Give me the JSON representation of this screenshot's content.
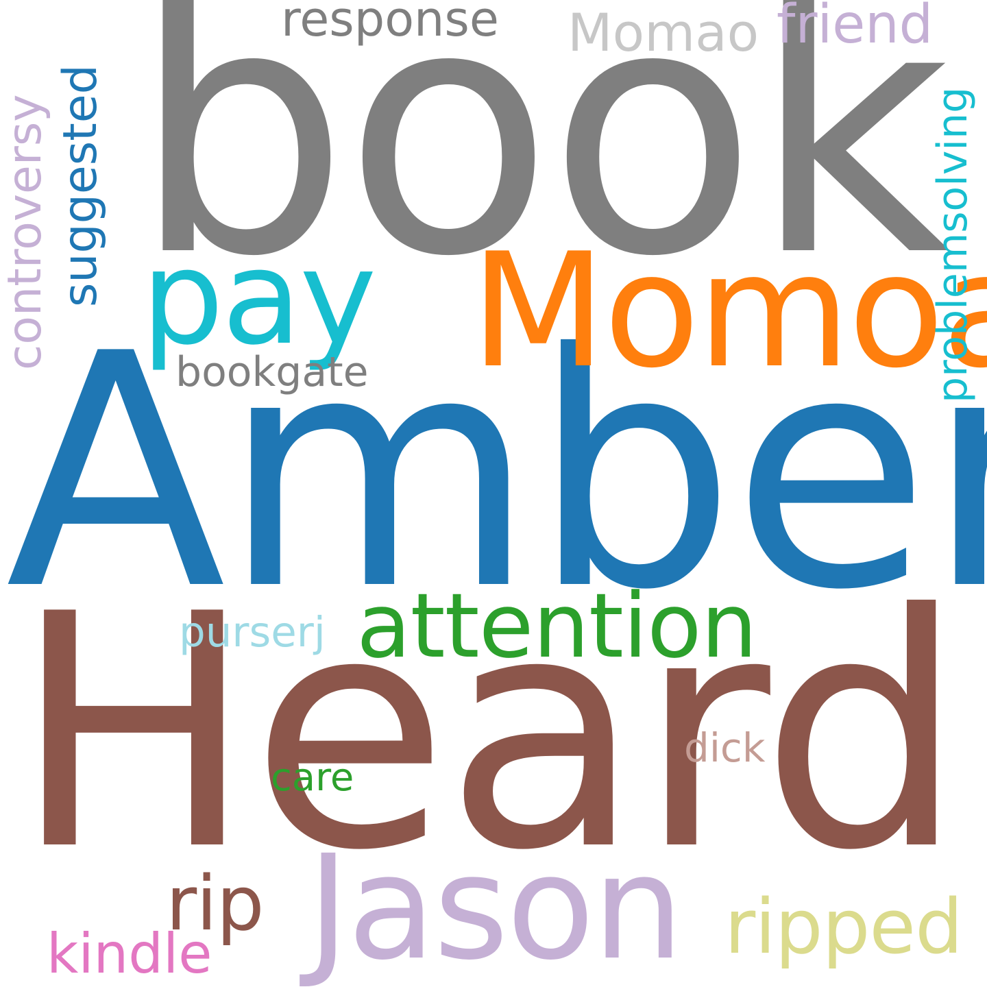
{
  "words": [
    {
      "id": "book",
      "text": "book",
      "color": "#7f7f7f"
    },
    {
      "id": "amber",
      "text": "Amber",
      "color": "#1f77b4"
    },
    {
      "id": "heard",
      "text": "Heard",
      "color": "#8c564b"
    },
    {
      "id": "momoa",
      "text": "Momoa",
      "color": "#ff7f0e"
    },
    {
      "id": "pay",
      "text": "pay",
      "color": "#17becf"
    },
    {
      "id": "jason",
      "text": "Jason",
      "color": "#c5b0d5"
    },
    {
      "id": "attention",
      "text": "attention",
      "color": "#2ca02c"
    },
    {
      "id": "ripped",
      "text": "ripped",
      "color": "#dbdb8d"
    },
    {
      "id": "rip",
      "text": "rip",
      "color": "#8c564b"
    },
    {
      "id": "kindle",
      "text": "kindle",
      "color": "#e377c2"
    },
    {
      "id": "response",
      "text": "response",
      "color": "#7f7f7f"
    },
    {
      "id": "momao",
      "text": "Momao",
      "color": "#c7c7c7"
    },
    {
      "id": "friend",
      "text": "friend",
      "color": "#c5b0d5"
    },
    {
      "id": "bookgate",
      "text": "bookgate",
      "color": "#7f7f7f"
    },
    {
      "id": "purserj",
      "text": "purserj",
      "color": "#9edae5"
    },
    {
      "id": "dick",
      "text": "dick",
      "color": "#c49c94"
    },
    {
      "id": "care",
      "text": "care",
      "color": "#2ca02c"
    },
    {
      "id": "suggested",
      "text": "suggested",
      "color": "#1f77b4"
    },
    {
      "id": "controversy",
      "text": "controversy",
      "color": "#c5b0d5"
    },
    {
      "id": "problemsolving",
      "text": "problemsolving",
      "color": "#17becf"
    }
  ]
}
